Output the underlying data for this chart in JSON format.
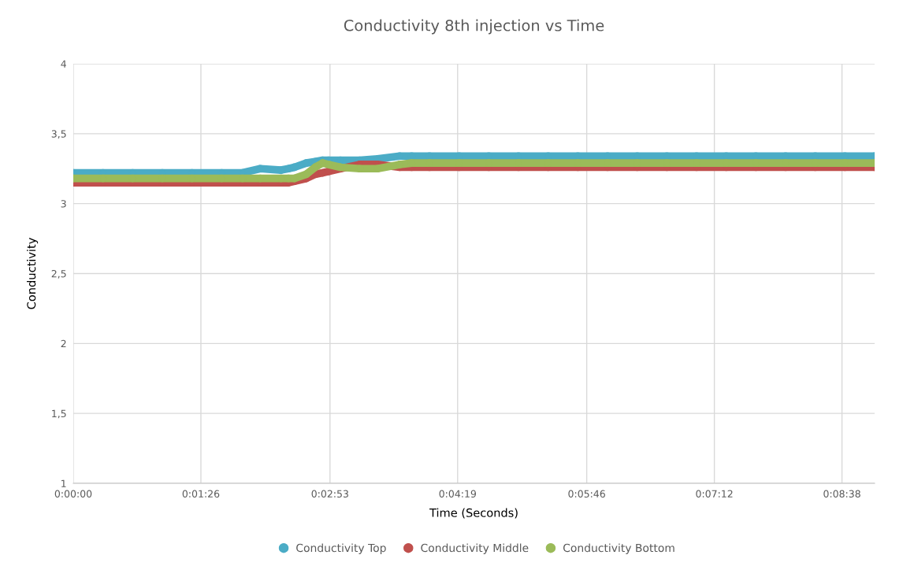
{
  "chart_data": {
    "type": "line",
    "title": "Conductivity 8th injection vs Time",
    "xlabel": "Time (Seconds)",
    "ylabel": "Conductivity",
    "x": [
      0,
      20,
      40,
      60,
      80,
      100,
      114,
      126,
      140,
      145,
      149,
      157,
      163,
      168,
      172,
      180,
      193,
      205,
      220,
      228,
      240,
      260,
      280,
      300,
      320,
      340,
      360,
      380,
      400,
      420,
      440,
      460,
      480,
      500,
      520,
      540
    ],
    "series": [
      {
        "name": "Conductivity Top",
        "color": "#4bacc6",
        "values": [
          3.22,
          3.22,
          3.22,
          3.22,
          3.22,
          3.22,
          3.22,
          3.25,
          3.24,
          3.25,
          3.26,
          3.29,
          3.3,
          3.31,
          3.31,
          3.31,
          3.31,
          3.32,
          3.34,
          3.34,
          3.34,
          3.34,
          3.34,
          3.34,
          3.34,
          3.34,
          3.34,
          3.34,
          3.34,
          3.34,
          3.34,
          3.34,
          3.34,
          3.34,
          3.34,
          3.34
        ]
      },
      {
        "name": "Conductivity Middle",
        "color": "#c0504d",
        "values": [
          3.15,
          3.15,
          3.15,
          3.15,
          3.15,
          3.15,
          3.15,
          3.15,
          3.15,
          3.15,
          3.16,
          3.18,
          3.21,
          3.22,
          3.23,
          3.25,
          3.28,
          3.28,
          3.26,
          3.26,
          3.26,
          3.26,
          3.26,
          3.26,
          3.26,
          3.26,
          3.26,
          3.26,
          3.26,
          3.26,
          3.26,
          3.26,
          3.26,
          3.26,
          3.26,
          3.26
        ]
      },
      {
        "name": "Conductivity Bottom",
        "color": "#9bbb59",
        "values": [
          3.18,
          3.18,
          3.18,
          3.18,
          3.18,
          3.18,
          3.18,
          3.18,
          3.18,
          3.18,
          3.18,
          3.21,
          3.26,
          3.29,
          3.28,
          3.26,
          3.25,
          3.25,
          3.28,
          3.29,
          3.29,
          3.29,
          3.29,
          3.29,
          3.29,
          3.29,
          3.29,
          3.29,
          3.29,
          3.29,
          3.29,
          3.29,
          3.29,
          3.29,
          3.29,
          3.29
        ]
      }
    ],
    "xlim": [
      0,
      540
    ],
    "xticks": [
      {
        "value": 0,
        "label": "0:00:00"
      },
      {
        "value": 86,
        "label": "0:01:26"
      },
      {
        "value": 173,
        "label": "0:02:53"
      },
      {
        "value": 259,
        "label": "0:04:19"
      },
      {
        "value": 346,
        "label": "0:05:46"
      },
      {
        "value": 432,
        "label": "0:07:12"
      },
      {
        "value": 518,
        "label": "0:08:38"
      }
    ],
    "ylim": [
      1,
      4
    ],
    "yticks": [
      1,
      {
        "value": 1.5,
        "label": "1,5"
      },
      2,
      {
        "value": 2.5,
        "label": "2,5"
      },
      3,
      {
        "value": 3.5,
        "label": "3,5"
      },
      4
    ],
    "grid": true,
    "legend": "bottom",
    "marker": "circle",
    "line_style": "solid"
  }
}
